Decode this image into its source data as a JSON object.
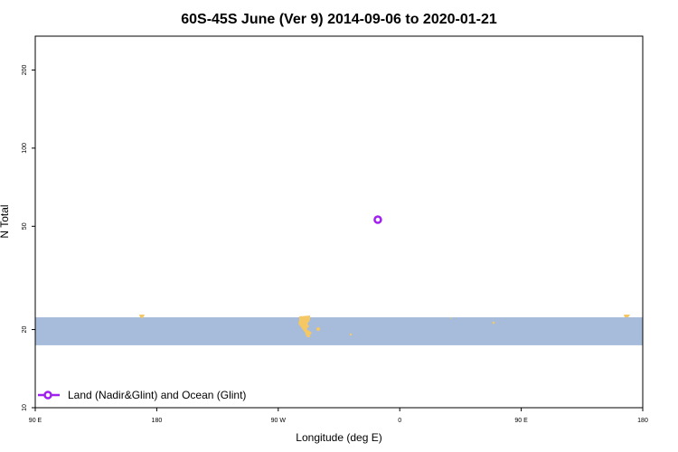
{
  "chart_data": {
    "type": "scatter",
    "title": "60S-45S June (Ver 9)   2014-09-06 to 2020-01-21",
    "xlabel": "Longitude (deg E)",
    "ylabel": "N Total",
    "x_scale": "linear",
    "y_scale": "log",
    "xlim": [
      90,
      450
    ],
    "ylim": [
      10,
      270
    ],
    "x_ticks": [
      {
        "value": 90,
        "label": "90 E"
      },
      {
        "value": 180,
        "label": "180"
      },
      {
        "value": 270,
        "label": "90 W"
      },
      {
        "value": 360,
        "label": "0"
      },
      {
        "value": 450,
        "label": "90 E"
      },
      {
        "value": 540,
        "label": "180"
      }
    ],
    "y_ticks": [
      {
        "value": 10,
        "label": "10"
      },
      {
        "value": 20,
        "label": "20"
      },
      {
        "value": 50,
        "label": "50"
      },
      {
        "value": 100,
        "label": "100"
      },
      {
        "value": 200,
        "label": "200"
      }
    ],
    "series": [
      {
        "name": "Land (Nadir&Glint) and Ocean (Glint)",
        "color": "#a020f0",
        "marker": "open-circle",
        "points": [
          {
            "x": 293,
            "y": 53
          }
        ]
      }
    ],
    "legend_position": "bottom-left",
    "grid": false
  },
  "map_band": {
    "y_range": [
      17.4,
      22.3
    ],
    "ocean_color": "#a7bcdb",
    "land_color": "#f5c863"
  },
  "legend": {
    "label": "Land (Nadir&Glint) and Ocean (Glint)"
  }
}
